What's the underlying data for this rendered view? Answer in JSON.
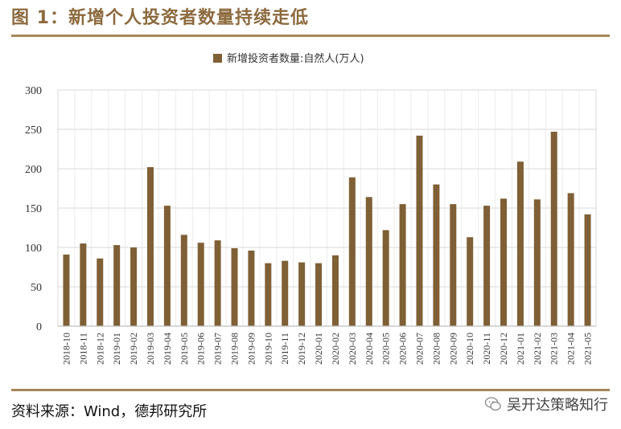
{
  "header": {
    "title": "图 1：新增个人投资者数量持续走低"
  },
  "footer": {
    "source": "资料来源：Wind，德邦研究所",
    "watermark": "吴开达策略知行"
  },
  "colors": {
    "bar": "#7F5F35",
    "accent": "#A8865B",
    "title": "#8C6A3E"
  },
  "chart_data": {
    "type": "bar",
    "categories": [
      "2018-10",
      "2018-11",
      "2018-12",
      "2019-01",
      "2019-02",
      "2019-03",
      "2019-04",
      "2019-05",
      "2019-06",
      "2019-07",
      "2019-08",
      "2019-09",
      "2019-10",
      "2019-11",
      "2019-12",
      "2020-01",
      "2020-02",
      "2020-03",
      "2020-04",
      "2020-05",
      "2020-06",
      "2020-07",
      "2020-08",
      "2020-09",
      "2020-10",
      "2020-11",
      "2020-12",
      "2021-01",
      "2021-02",
      "2021-03",
      "2021-04",
      "2021-05"
    ],
    "series": [
      {
        "name": "新增投资者数量:自然人(万人)",
        "values": [
          91,
          105,
          86,
          103,
          100,
          202,
          153,
          116,
          106,
          109,
          99,
          96,
          80,
          83,
          81,
          80,
          90,
          189,
          164,
          122,
          155,
          242,
          180,
          155,
          113,
          153,
          162,
          209,
          161,
          247,
          169,
          142
        ]
      }
    ],
    "yticks": [
      "0",
      "50",
      "100",
      "150",
      "200",
      "250",
      "300"
    ],
    "ylim": [
      0,
      300
    ],
    "legend_position": "top-center",
    "grid": true
  }
}
